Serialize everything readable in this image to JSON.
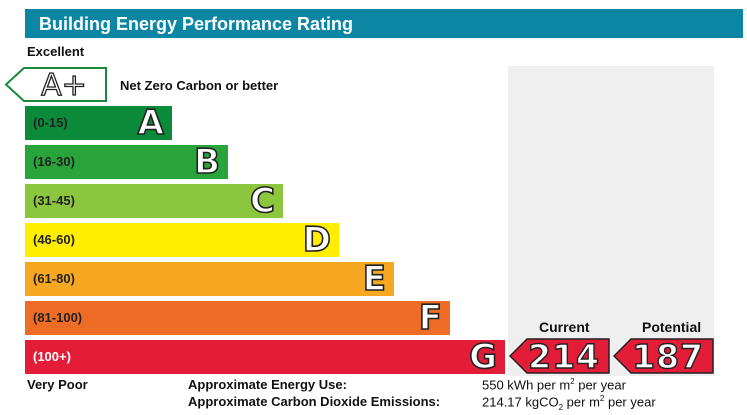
{
  "title": "Building Energy Performance Rating",
  "top_label": "Excellent",
  "bottom_label": "Very Poor",
  "aplus": {
    "letter": "A+",
    "text": "Net Zero Carbon or better"
  },
  "bands": [
    {
      "letter": "A",
      "range": "(0-15)",
      "color": "#0b8a3a"
    },
    {
      "letter": "B",
      "range": "(16-30)",
      "color": "#29a43a"
    },
    {
      "letter": "C",
      "range": "(31-45)",
      "color": "#8cc63f"
    },
    {
      "letter": "D",
      "range": "(46-60)",
      "color": "#ffee00"
    },
    {
      "letter": "E",
      "range": "(61-80)",
      "color": "#f7a823"
    },
    {
      "letter": "F",
      "range": "(81-100)",
      "color": "#ee6c25"
    },
    {
      "letter": "G",
      "range": "(100+)",
      "color": "#e31d38"
    }
  ],
  "current": {
    "label": "Current",
    "value": "214"
  },
  "potential": {
    "label": "Potential",
    "value": "187"
  },
  "energy_use": {
    "label": "Approximate Energy Use:",
    "value_prefix": "550 kWh per m",
    "sup": "2",
    "value_suffix": " per year"
  },
  "co2": {
    "label": "Approximate Carbon Dioxide Emissions:",
    "value_prefix": "214.17 kgCO",
    "sub": "2",
    "value_mid": " per m",
    "sup": "2",
    "value_suffix": " per year"
  },
  "colors": {
    "header": "#0c86a3",
    "aplus_outline": "#1a8a3a",
    "rating_fill": "#e31d38"
  }
}
